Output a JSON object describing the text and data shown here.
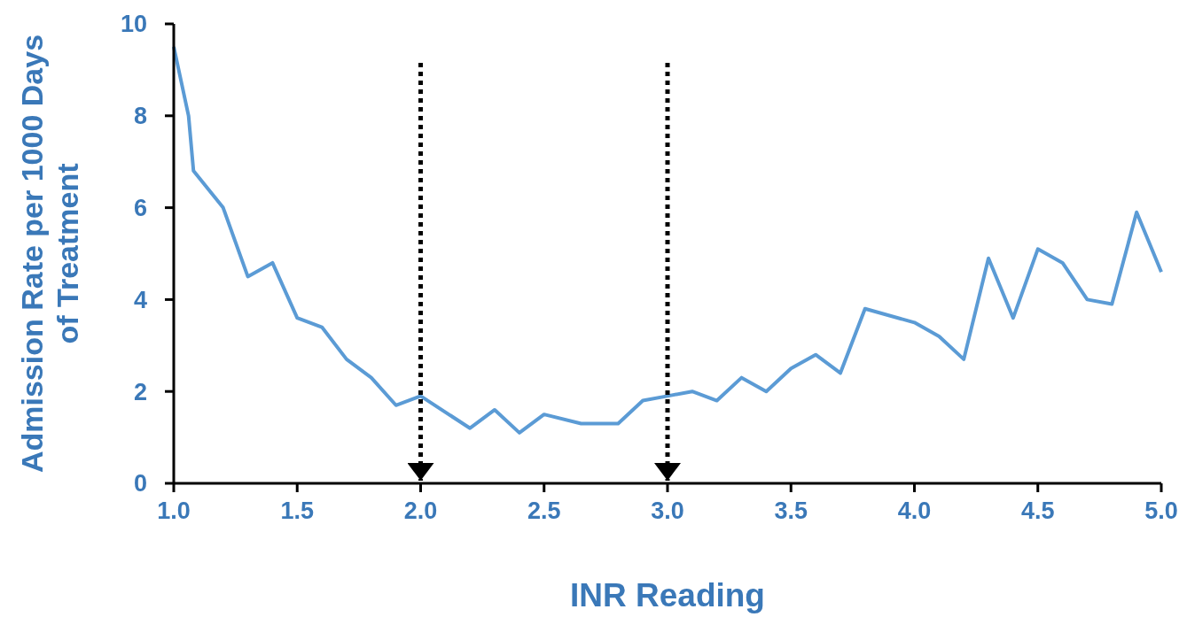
{
  "chart_data": {
    "type": "line",
    "xlabel": "INR Reading",
    "ylabel": "Admission Rate per 1000 Days of Treatment",
    "xlim": [
      1,
      5
    ],
    "ylim": [
      0,
      10
    ],
    "xticks": [
      {
        "value": 1,
        "label": "1.0"
      },
      {
        "value": 1.5,
        "label": "1.5"
      },
      {
        "value": 2,
        "label": "2.0"
      },
      {
        "value": 2.5,
        "label": "2.5"
      },
      {
        "value": 3,
        "label": "3.0"
      },
      {
        "value": 3.5,
        "label": "3.5"
      },
      {
        "value": 4,
        "label": "4.0"
      },
      {
        "value": 4.5,
        "label": "4.5"
      },
      {
        "value": 5,
        "label": "5.0"
      }
    ],
    "yticks": [
      0,
      2,
      4,
      6,
      8,
      10
    ],
    "grid": false,
    "marker": "none",
    "line_style": "solid",
    "x": [
      1.0,
      1.06,
      1.08,
      1.2,
      1.3,
      1.4,
      1.5,
      1.6,
      1.7,
      1.8,
      1.9,
      2.0,
      2.2,
      2.3,
      2.4,
      2.5,
      2.65,
      2.8,
      2.9,
      3.0,
      3.1,
      3.2,
      3.3,
      3.4,
      3.5,
      3.6,
      3.7,
      3.8,
      4.0,
      4.1,
      4.2,
      4.3,
      4.4,
      4.5,
      4.6,
      4.7,
      4.8,
      4.9,
      5.0
    ],
    "series": [
      {
        "color": "#5b9bd5",
        "values": [
          9.5,
          8.0,
          6.8,
          6.0,
          4.5,
          4.8,
          3.6,
          3.4,
          2.7,
          2.3,
          1.7,
          1.9,
          1.2,
          1.6,
          1.1,
          1.5,
          1.3,
          1.3,
          1.8,
          1.9,
          2.0,
          1.8,
          2.3,
          2.0,
          2.5,
          2.8,
          2.4,
          3.8,
          3.5,
          3.2,
          2.7,
          4.9,
          3.6,
          5.1,
          4.8,
          4.0,
          3.9,
          5.9,
          4.6
        ]
      }
    ],
    "ref_lines": [
      {
        "axis": "x",
        "value": 2,
        "color": "#000000",
        "line_style": "dotted"
      },
      {
        "axis": "x",
        "value": 3,
        "color": "#000000",
        "line_style": "dotted"
      }
    ]
  }
}
